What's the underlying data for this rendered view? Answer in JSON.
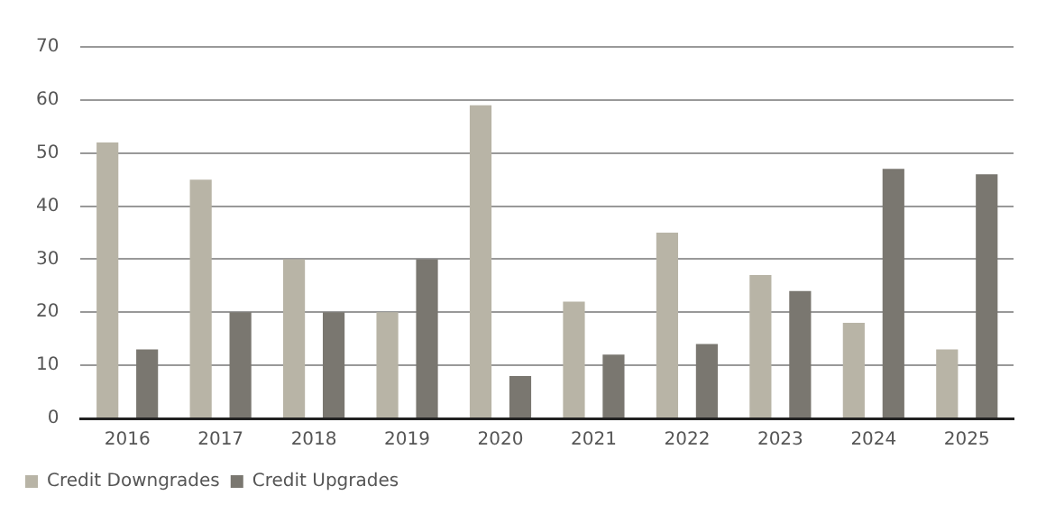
{
  "chart_data": {
    "type": "bar",
    "categories": [
      "2016",
      "2017",
      "2018",
      "2019",
      "2020",
      "2021",
      "2022",
      "2023",
      "2024",
      "2025"
    ],
    "series": [
      {
        "name": "Credit Downgrades",
        "color": "#b8b4a6",
        "values": [
          52,
          45,
          30,
          20,
          59,
          22,
          35,
          27,
          18,
          13
        ]
      },
      {
        "name": "Credit Upgrades",
        "color": "#7a7770",
        "values": [
          13,
          20,
          20,
          30,
          8,
          12,
          14,
          24,
          47,
          46
        ]
      }
    ],
    "ylim": [
      0,
      70
    ],
    "yticks": [
      0,
      10,
      20,
      30,
      40,
      50,
      60,
      70
    ],
    "grid": "y",
    "legend": "bottom left"
  }
}
